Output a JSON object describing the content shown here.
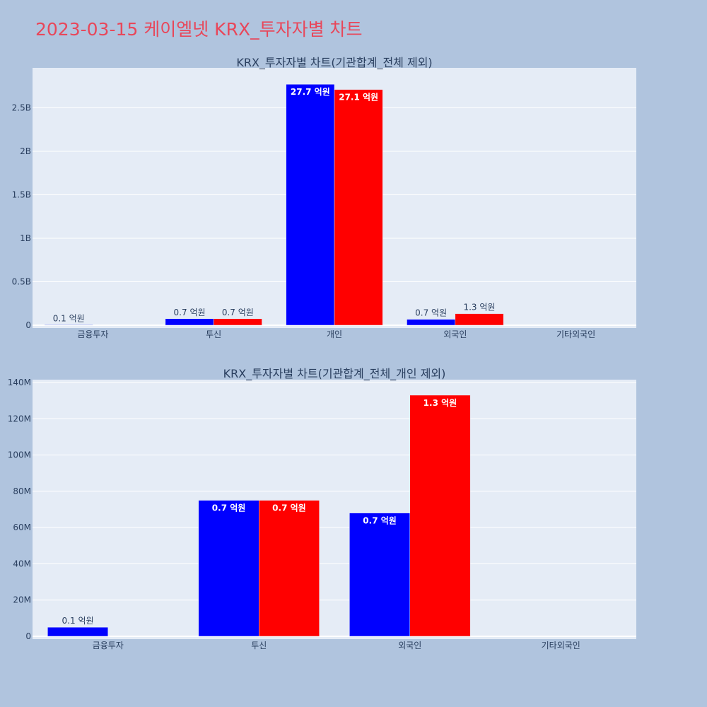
{
  "title": "2023-03-15 케이엘넷 KRX_투자자별 차트",
  "colors": {
    "background": "#b0c4de",
    "plot_bg": "#e5ecf6",
    "title": "#e8475a",
    "series_a": "#0000ff",
    "series_b": "#ff0000"
  },
  "chart_data": [
    {
      "type": "bar",
      "title": "KRX_투자자별 차트(기관합계_전체 제외)",
      "categories": [
        "금융투자",
        "투신",
        "개인",
        "외국인",
        "기타외국인"
      ],
      "y_ticks": [
        {
          "value": 0,
          "label": "0"
        },
        {
          "value": 500000000,
          "label": "0.5B"
        },
        {
          "value": 1000000000,
          "label": "1B"
        },
        {
          "value": 1500000000,
          "label": "1.5B"
        },
        {
          "value": 2000000000,
          "label": "2B"
        },
        {
          "value": 2500000000,
          "label": "2.5B"
        }
      ],
      "ylim": [
        0,
        2780000000
      ],
      "grid": true,
      "series": [
        {
          "color": "#0000ff",
          "values": [
            5000000,
            75000000,
            2770000000,
            68000000,
            0
          ],
          "labels": [
            "0.1 억원",
            "0.7 억원",
            "27.7 억원",
            "0.7 억원",
            ""
          ]
        },
        {
          "color": "#ff0000",
          "values": [
            0,
            75000000,
            2710000000,
            133000000,
            0
          ],
          "labels": [
            "",
            "0.7 억원",
            "27.1 억원",
            "1.3 억원",
            ""
          ]
        }
      ]
    },
    {
      "type": "bar",
      "title": "KRX_투자자별 차트(기관합계_전체_개인 제외)",
      "categories": [
        "금융투자",
        "투신",
        "외국인",
        "기타외국인"
      ],
      "y_ticks": [
        {
          "value": 0,
          "label": "0"
        },
        {
          "value": 20000000,
          "label": "20M"
        },
        {
          "value": 40000000,
          "label": "40M"
        },
        {
          "value": 60000000,
          "label": "60M"
        },
        {
          "value": 80000000,
          "label": "80M"
        },
        {
          "value": 100000000,
          "label": "100M"
        },
        {
          "value": 120000000,
          "label": "120M"
        },
        {
          "value": 140000000,
          "label": "140M"
        }
      ],
      "ylim": [
        0,
        140000000
      ],
      "grid": true,
      "series": [
        {
          "color": "#0000ff",
          "values": [
            5000000,
            75000000,
            68000000,
            0
          ],
          "labels": [
            "0.1 억원",
            "0.7 억원",
            "0.7 억원",
            ""
          ]
        },
        {
          "color": "#ff0000",
          "values": [
            0,
            75000000,
            133000000,
            0
          ],
          "labels": [
            "",
            "0.7 억원",
            "1.3 억원",
            ""
          ]
        }
      ]
    }
  ]
}
